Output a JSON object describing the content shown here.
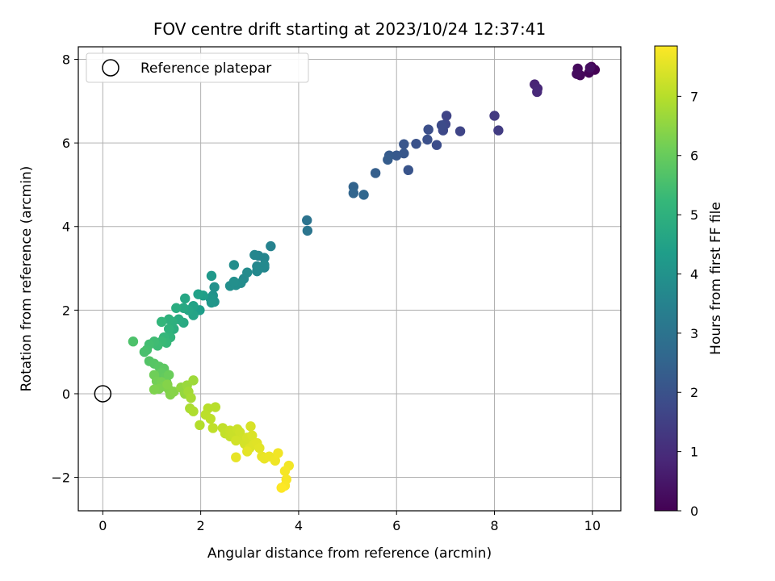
{
  "chart_data": {
    "type": "scatter",
    "title": "FOV centre drift starting at 2023/10/24 12:37:41",
    "xlabel": "Angular distance from reference (arcmin)",
    "ylabel": "Rotation from reference (arcmin)",
    "xlim": [
      -0.5,
      10.58
    ],
    "ylim": [
      -2.8,
      8.3
    ],
    "xticks": [
      0,
      2,
      4,
      6,
      8,
      10
    ],
    "yticks": [
      -2,
      0,
      2,
      4,
      6,
      8
    ],
    "xtick_labels": [
      "0",
      "2",
      "4",
      "6",
      "8",
      "10"
    ],
    "ytick_labels": [
      "−2",
      "0",
      "2",
      "4",
      "6",
      "8"
    ],
    "grid": true,
    "legend": {
      "placement": "top-left",
      "entries": [
        {
          "label": "Reference platepar",
          "marker": "open-circle",
          "x": 0,
          "y": 0
        }
      ]
    },
    "colorbar": {
      "label": "Hours from first FF file",
      "colormap": "viridis",
      "range": [
        0,
        7.85
      ],
      "ticks": [
        0,
        1,
        2,
        3,
        4,
        5,
        6,
        7
      ],
      "tick_labels": [
        "0",
        "1",
        "2",
        "3",
        "4",
        "5",
        "6",
        "7"
      ]
    },
    "colormap_stops": [
      "#440154",
      "#482878",
      "#3e4989",
      "#31688e",
      "#26828e",
      "#1f9e89",
      "#35b779",
      "#6ece58",
      "#b5de2b",
      "#fde725"
    ],
    "reference_point": {
      "x": 0,
      "y": 0
    },
    "points": [
      [
        10.05,
        7.75,
        0.0
      ],
      [
        9.98,
        7.82,
        0.05
      ],
      [
        9.93,
        7.68,
        0.1
      ],
      [
        9.75,
        7.62,
        0.15
      ],
      [
        9.7,
        7.78,
        0.2
      ],
      [
        9.68,
        7.65,
        0.25
      ],
      [
        9.95,
        7.8,
        0.3
      ],
      [
        8.82,
        7.4,
        0.8
      ],
      [
        8.88,
        7.3,
        0.85
      ],
      [
        8.87,
        7.22,
        0.9
      ],
      [
        8.0,
        6.65,
        1.35
      ],
      [
        8.08,
        6.3,
        1.4
      ],
      [
        7.02,
        6.65,
        1.6
      ],
      [
        7.3,
        6.28,
        1.65
      ],
      [
        7.0,
        6.45,
        1.7
      ],
      [
        6.95,
        6.3,
        1.75
      ],
      [
        6.92,
        6.42,
        1.8
      ],
      [
        6.82,
        5.95,
        1.85
      ],
      [
        6.65,
        6.32,
        1.9
      ],
      [
        6.63,
        6.08,
        1.95
      ],
      [
        6.4,
        5.98,
        2.0
      ],
      [
        6.24,
        5.35,
        2.05
      ],
      [
        6.15,
        5.97,
        2.1
      ],
      [
        6.15,
        5.75,
        2.15
      ],
      [
        6.0,
        5.7,
        2.2
      ],
      [
        5.85,
        5.7,
        2.25
      ],
      [
        5.82,
        5.6,
        2.3
      ],
      [
        5.57,
        5.28,
        2.35
      ],
      [
        5.12,
        4.95,
        2.5
      ],
      [
        5.12,
        4.8,
        2.55
      ],
      [
        5.33,
        4.76,
        2.6
      ],
      [
        4.17,
        4.15,
        3.0
      ],
      [
        4.18,
        3.9,
        3.05
      ],
      [
        3.43,
        3.53,
        3.5
      ],
      [
        3.18,
        3.3,
        3.55
      ],
      [
        3.3,
        3.25,
        3.58
      ],
      [
        3.1,
        3.32,
        3.6
      ],
      [
        3.3,
        3.02,
        3.62
      ],
      [
        3.15,
        3.05,
        3.65
      ],
      [
        3.15,
        2.93,
        3.68
      ],
      [
        3.3,
        3.08,
        3.7
      ],
      [
        3.18,
        2.98,
        3.72
      ],
      [
        2.88,
        2.75,
        3.75
      ],
      [
        2.95,
        2.9,
        3.78
      ],
      [
        2.82,
        2.65,
        3.8
      ],
      [
        2.68,
        3.08,
        3.82
      ],
      [
        2.72,
        2.6,
        3.85
      ],
      [
        2.6,
        2.58,
        3.88
      ],
      [
        2.68,
        2.68,
        3.9
      ],
      [
        2.28,
        2.55,
        3.95
      ],
      [
        2.25,
        2.35,
        4.0
      ],
      [
        2.28,
        2.2,
        4.05
      ],
      [
        2.2,
        2.28,
        4.1
      ],
      [
        2.22,
        2.18,
        4.15
      ],
      [
        2.22,
        2.82,
        4.2
      ],
      [
        1.98,
        2.0,
        4.35
      ],
      [
        2.05,
        2.35,
        4.4
      ],
      [
        1.95,
        2.38,
        4.45
      ],
      [
        1.85,
        2.1,
        4.5
      ],
      [
        1.85,
        1.88,
        4.55
      ],
      [
        1.75,
        2.0,
        4.6
      ],
      [
        1.68,
        2.28,
        4.65
      ],
      [
        1.65,
        2.05,
        4.7
      ],
      [
        1.65,
        1.7,
        4.75
      ],
      [
        1.55,
        1.78,
        4.8
      ],
      [
        1.5,
        2.05,
        4.85
      ],
      [
        1.45,
        1.55,
        4.9
      ],
      [
        1.42,
        1.72,
        4.95
      ],
      [
        1.35,
        1.78,
        5.0
      ],
      [
        1.35,
        1.55,
        5.05
      ],
      [
        1.38,
        1.35,
        5.1
      ],
      [
        1.2,
        1.72,
        5.15
      ],
      [
        1.25,
        1.35,
        5.2
      ],
      [
        1.3,
        1.22,
        5.25
      ],
      [
        1.2,
        1.25,
        5.3
      ],
      [
        1.12,
        1.15,
        5.35
      ],
      [
        1.05,
        1.25,
        5.4
      ],
      [
        0.95,
        1.18,
        5.45
      ],
      [
        0.9,
        1.05,
        5.5
      ],
      [
        0.85,
        1.0,
        5.55
      ],
      [
        0.62,
        1.25,
        5.6
      ],
      [
        0.95,
        0.78,
        5.7
      ],
      [
        1.05,
        0.72,
        5.75
      ],
      [
        1.15,
        0.65,
        5.8
      ],
      [
        1.25,
        0.6,
        5.85
      ],
      [
        1.2,
        0.5,
        5.9
      ],
      [
        1.28,
        0.4,
        5.95
      ],
      [
        1.3,
        0.28,
        6.0
      ],
      [
        1.35,
        0.45,
        6.05
      ],
      [
        1.05,
        0.45,
        6.1
      ],
      [
        1.1,
        0.3,
        6.15
      ],
      [
        1.2,
        0.28,
        6.2
      ],
      [
        1.25,
        0.18,
        6.25
      ],
      [
        1.15,
        0.12,
        6.28
      ],
      [
        1.05,
        0.1,
        6.3
      ],
      [
        1.35,
        0.1,
        6.32
      ],
      [
        1.38,
        -0.02,
        6.35
      ],
      [
        1.32,
        0.22,
        6.38
      ],
      [
        1.45,
        0.05,
        6.4
      ],
      [
        1.65,
        0.1,
        6.5
      ],
      [
        1.6,
        0.15,
        6.55
      ],
      [
        1.68,
        0.0,
        6.6
      ],
      [
        1.72,
        0.2,
        6.65
      ],
      [
        1.85,
        0.32,
        6.7
      ],
      [
        1.75,
        0.05,
        6.75
      ],
      [
        1.8,
        -0.1,
        6.8
      ],
      [
        1.78,
        -0.35,
        6.85
      ],
      [
        1.85,
        -0.42,
        6.9
      ],
      [
        1.98,
        -0.75,
        6.95
      ],
      [
        2.15,
        -0.35,
        7.0
      ],
      [
        2.3,
        -0.32,
        7.02
      ],
      [
        2.1,
        -0.5,
        7.05
      ],
      [
        2.2,
        -0.6,
        7.08
      ],
      [
        2.25,
        -0.82,
        7.1
      ],
      [
        2.45,
        -0.82,
        7.12
      ],
      [
        2.5,
        -0.95,
        7.15
      ],
      [
        2.6,
        -1.02,
        7.18
      ],
      [
        2.6,
        -0.88,
        7.2
      ],
      [
        2.65,
        -0.95,
        7.22
      ],
      [
        2.75,
        -0.85,
        7.25
      ],
      [
        2.8,
        -0.92,
        7.28
      ],
      [
        2.85,
        -1.08,
        7.3
      ],
      [
        2.72,
        -1.12,
        7.32
      ],
      [
        2.9,
        -1.2,
        7.35
      ],
      [
        2.95,
        -1.05,
        7.38
      ],
      [
        3.02,
        -0.78,
        7.4
      ],
      [
        3.05,
        -1.0,
        7.42
      ],
      [
        3.0,
        -1.3,
        7.45
      ],
      [
        3.08,
        -1.22,
        7.48
      ],
      [
        3.15,
        -1.18,
        7.5
      ],
      [
        3.2,
        -1.3,
        7.52
      ],
      [
        2.95,
        -1.38,
        7.55
      ],
      [
        2.72,
        -1.52,
        7.58
      ],
      [
        3.25,
        -1.5,
        7.6
      ],
      [
        3.3,
        -1.55,
        7.62
      ],
      [
        3.4,
        -1.5,
        7.65
      ],
      [
        3.52,
        -1.6,
        7.68
      ],
      [
        3.58,
        -1.42,
        7.7
      ],
      [
        3.8,
        -1.72,
        7.72
      ],
      [
        3.72,
        -1.85,
        7.75
      ],
      [
        3.75,
        -2.05,
        7.78
      ],
      [
        3.72,
        -2.2,
        7.8
      ],
      [
        3.65,
        -2.25,
        7.85
      ]
    ]
  }
}
